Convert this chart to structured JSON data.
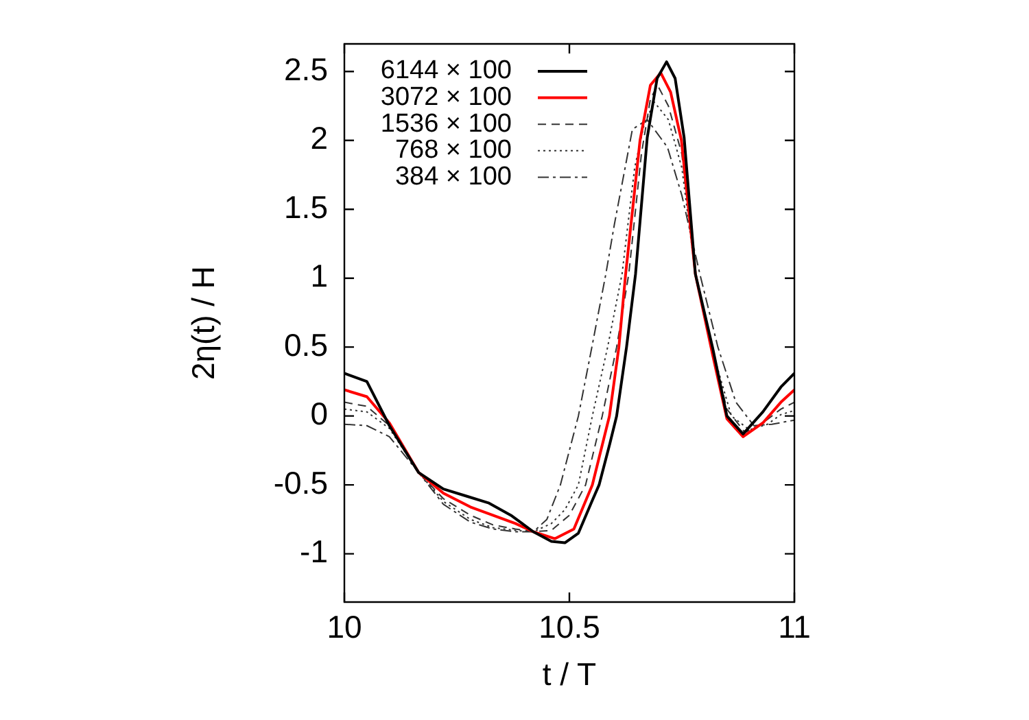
{
  "chart_data": {
    "type": "line",
    "xlabel": "t / T",
    "ylabel": "2η(t) / H",
    "xlim": [
      10,
      11
    ],
    "xticks": [
      10,
      10.5,
      11
    ],
    "ylim": [
      -1.35,
      2.7
    ],
    "yticks": [
      -1,
      -0.5,
      0,
      0.5,
      1,
      1.5,
      2,
      2.5
    ],
    "grid": false,
    "legend": "top left",
    "marker": "none",
    "series": [
      {
        "name": "6144 × 100",
        "color": "#000000",
        "line_style": "solid",
        "x": [
          10,
          10.05,
          10.1,
          10.165,
          10.22,
          10.27,
          10.32,
          10.37,
          10.42,
          10.46,
          10.49,
          10.52,
          10.55,
          10.566,
          10.59,
          10.605,
          10.627,
          10.647,
          10.673,
          10.695,
          10.716,
          10.735,
          10.755,
          10.78,
          10.818,
          10.85,
          10.886,
          10.93,
          10.97,
          11
        ],
        "values": [
          0.31,
          0.25,
          -0.07,
          -0.41,
          -0.53,
          -0.58,
          -0.63,
          -0.72,
          -0.84,
          -0.91,
          -0.92,
          -0.85,
          -0.62,
          -0.5,
          -0.2,
          0,
          0.5,
          1.03,
          2.02,
          2.45,
          2.57,
          2.45,
          2.02,
          1.03,
          0.5,
          0,
          -0.13,
          0.03,
          0.21,
          0.31
        ]
      },
      {
        "name": "3072 × 100",
        "color": "#ff0000",
        "line_style": "solid",
        "x": [
          10,
          10.05,
          10.1,
          10.165,
          10.22,
          10.28,
          10.33,
          10.38,
          10.42,
          10.468,
          10.51,
          10.551,
          10.589,
          10.61,
          10.625,
          10.657,
          10.68,
          10.703,
          10.725,
          10.749,
          10.78,
          10.818,
          10.85,
          10.886,
          10.93,
          10.97,
          11
        ],
        "values": [
          0.19,
          0.14,
          -0.05,
          -0.41,
          -0.56,
          -0.66,
          -0.72,
          -0.78,
          -0.84,
          -0.89,
          -0.82,
          -0.5,
          0,
          0.5,
          1.03,
          2.0,
          2.4,
          2.49,
          2.35,
          2.0,
          1.03,
          0.45,
          -0.02,
          -0.15,
          -0.05,
          0.1,
          0.19
        ]
      },
      {
        "name": "1536 × 100",
        "color": "#333333",
        "line_style": "dashed",
        "x": [
          10,
          10.05,
          10.1,
          10.165,
          10.22,
          10.28,
          10.33,
          10.38,
          10.42,
          10.46,
          10.5,
          10.536,
          10.573,
          10.605,
          10.632,
          10.66,
          10.68,
          10.696,
          10.72,
          10.75,
          10.78,
          10.818,
          10.85,
          10.89,
          10.93,
          10.97,
          11
        ],
        "values": [
          0.1,
          0.07,
          -0.07,
          -0.41,
          -0.6,
          -0.72,
          -0.79,
          -0.82,
          -0.84,
          -0.83,
          -0.72,
          -0.5,
          0,
          0.5,
          1.03,
          1.9,
          2.3,
          2.4,
          2.25,
          1.9,
          1.03,
          0.47,
          0.05,
          -0.12,
          -0.05,
          0.05,
          0.1
        ]
      },
      {
        "name": "768 × 100",
        "color": "#333333",
        "line_style": "dotted",
        "x": [
          10,
          10.05,
          10.1,
          10.165,
          10.22,
          10.28,
          10.33,
          10.38,
          10.42,
          10.46,
          10.49,
          10.52,
          10.551,
          10.585,
          10.617,
          10.645,
          10.665,
          10.688,
          10.72,
          10.75,
          10.78,
          10.82,
          10.86,
          10.9,
          10.94,
          10.97,
          11
        ],
        "values": [
          0.05,
          0.03,
          -0.09,
          -0.41,
          -0.62,
          -0.75,
          -0.81,
          -0.83,
          -0.84,
          -0.78,
          -0.68,
          -0.5,
          0,
          0.5,
          1.03,
          1.8,
          2.1,
          2.28,
          2.15,
          1.8,
          1.03,
          0.45,
          0,
          -0.1,
          -0.06,
          0.01,
          0.04
        ]
      },
      {
        "name": "384 × 100",
        "color": "#333333",
        "line_style": "dashdot",
        "x": [
          10,
          10.05,
          10.1,
          10.165,
          10.22,
          10.28,
          10.33,
          10.38,
          10.42,
          10.45,
          10.48,
          10.52,
          10.55,
          10.581,
          10.6,
          10.64,
          10.673,
          10.718,
          10.75,
          10.79,
          10.83,
          10.87,
          10.91,
          10.95,
          11
        ],
        "values": [
          -0.06,
          -0.07,
          -0.15,
          -0.41,
          -0.64,
          -0.77,
          -0.82,
          -0.84,
          -0.84,
          -0.75,
          -0.5,
          0,
          0.5,
          1.03,
          1.39,
          2.08,
          2.15,
          1.95,
          1.6,
          1.03,
          0.5,
          0.1,
          -0.07,
          -0.06,
          -0.03
        ]
      }
    ]
  }
}
